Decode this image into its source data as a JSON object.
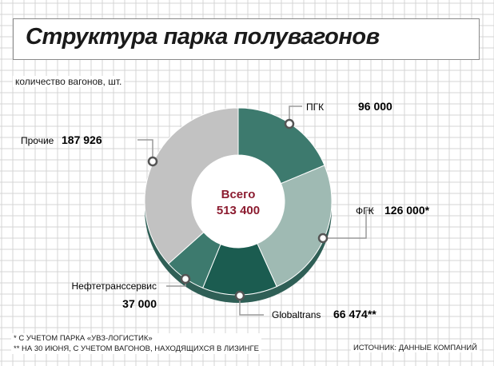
{
  "header": {
    "title": "Структура парка полувагонов",
    "unit_label": "количество вагонов, шт."
  },
  "chart_data": {
    "type": "pie",
    "center_label": "Всего",
    "total": 513400,
    "total_label": "513 400",
    "slices": [
      {
        "name": "ПГК",
        "value": 96000,
        "value_label": "96 000",
        "marker": "",
        "color": "#3d7a6e"
      },
      {
        "name": "ФГК",
        "value": 126000,
        "value_label": "126 000",
        "marker": "*",
        "color": "#9fbab3"
      },
      {
        "name": "Globaltrans",
        "value": 66474,
        "value_label": "66 474",
        "marker": "**",
        "color": "#1b5c50"
      },
      {
        "name": "Нефтетранссервис",
        "value": 37000,
        "value_label": "37 000",
        "marker": "",
        "color": "#3d7a6e"
      },
      {
        "name": "Прочие",
        "value": 187926,
        "value_label": "187 926",
        "marker": "",
        "color": "#c2c2c2"
      }
    ]
  },
  "footer": {
    "note1": "* С УЧЕТОМ ПАРКА «УВЗ-ЛОГИСТИК»",
    "note2": "** НА 30 ИЮНЯ, С УЧЕТОМ ВАГОНОВ, НАХОДЯЩИХСЯ В ЛИЗИНГЕ",
    "source": "ИСТОЧНИК: ДАННЫЕ КОМПАНИЙ"
  },
  "colors": {
    "grid": "#d4d4d4",
    "total_text": "#8c1c30",
    "hole": "#ffffff",
    "leader": "#9a9a9a"
  }
}
